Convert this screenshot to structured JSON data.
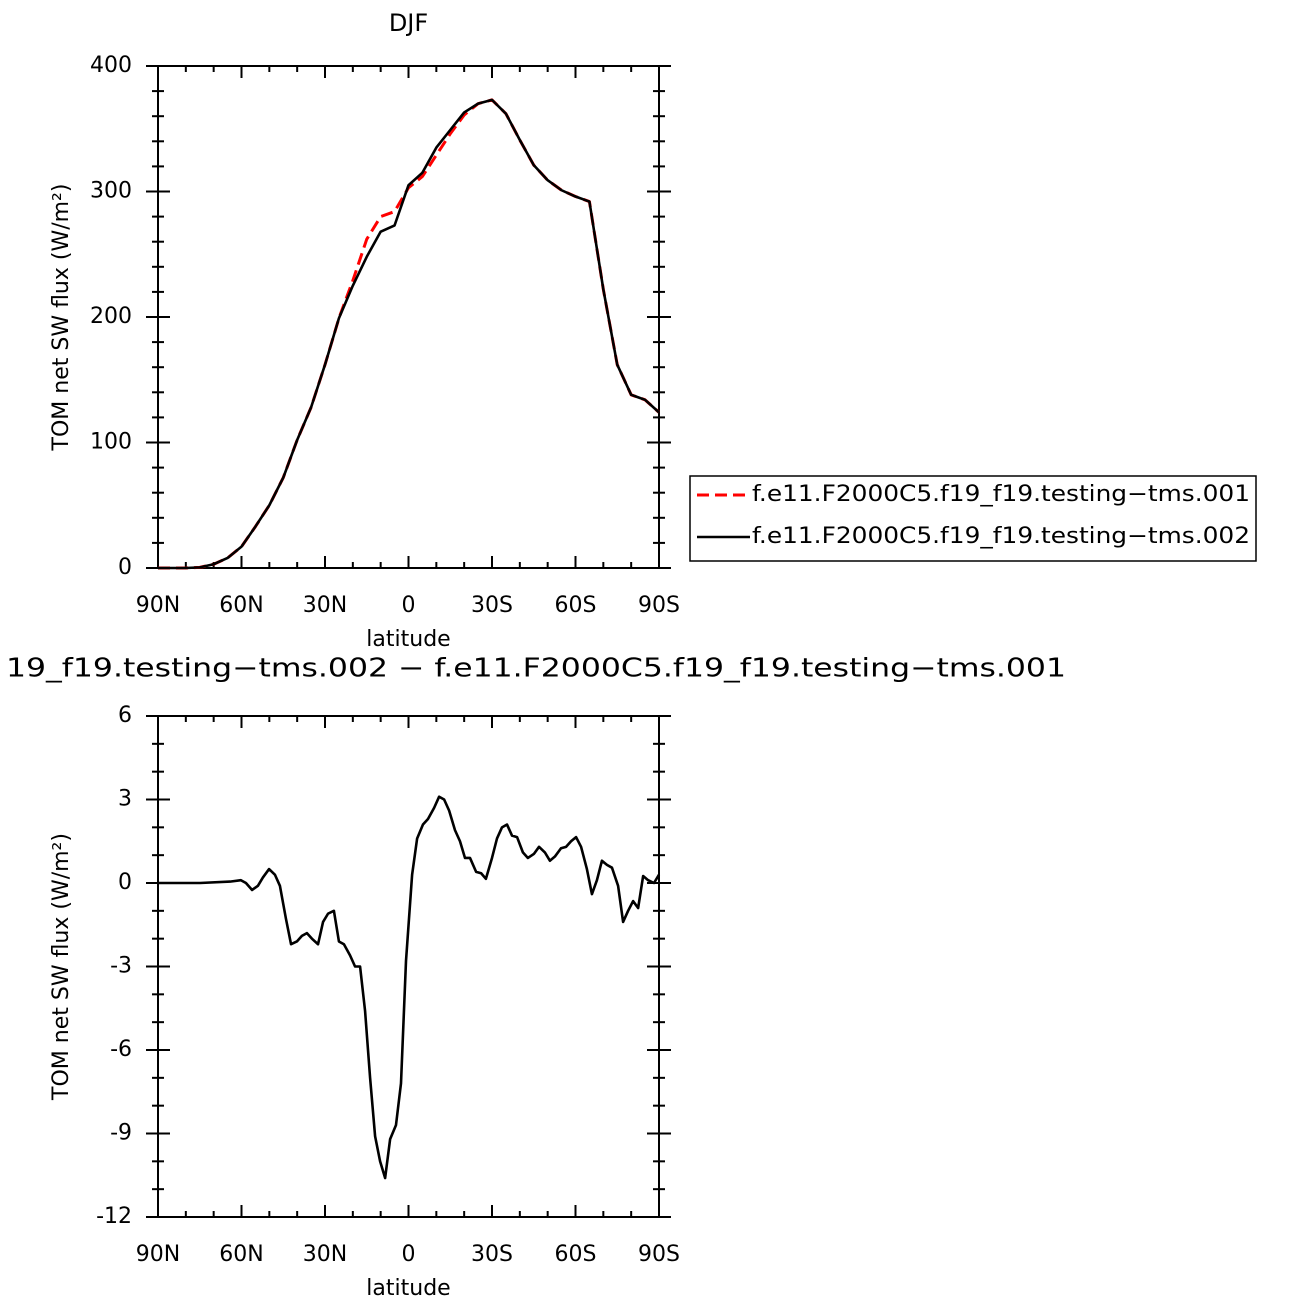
{
  "chart_data": [
    {
      "type": "line",
      "title": "DJF",
      "xlabel": "latitude",
      "ylabel": "TOM net SW flux (W/m²)",
      "x": [
        90,
        85,
        80,
        75,
        70,
        65,
        60,
        55,
        50,
        45,
        40,
        35,
        30,
        25,
        20,
        15,
        10,
        5,
        0,
        -5,
        -10,
        -15,
        -20,
        -25,
        -30,
        -35,
        -40,
        -45,
        -50,
        -55,
        -60,
        -65,
        -70,
        -75,
        -80,
        -85,
        -90
      ],
      "series": [
        {
          "name": "f.e11.F2000C5.f19_f19.testing−tms.001",
          "color": "#ff0000",
          "dash": "dashed",
          "values": [
            0,
            0,
            0,
            0.5,
            3,
            8,
            17,
            33,
            50,
            72,
            102,
            128,
            162,
            199,
            229,
            262,
            280,
            284,
            303,
            312,
            329,
            346,
            361,
            370,
            373,
            362,
            341,
            321,
            309,
            301,
            296,
            292,
            222,
            162,
            138,
            134,
            124
          ]
        },
        {
          "name": "f.e11.F2000C5.f19_f19.testing−tms.002",
          "color": "#000000",
          "dash": "solid",
          "values": [
            0,
            0,
            0,
            0.5,
            3,
            8,
            17,
            33,
            50,
            72,
            102,
            128,
            162,
            199,
            225,
            248,
            268,
            273,
            305,
            315,
            335,
            349,
            363,
            370,
            373,
            362,
            341,
            321,
            309,
            301,
            296,
            292,
            222,
            162,
            138,
            134,
            124
          ]
        }
      ],
      "xlim": [
        90,
        -90
      ],
      "xticks": [
        {
          "value": 90,
          "label": "90N"
        },
        {
          "value": 60,
          "label": "60N"
        },
        {
          "value": 30,
          "label": "30N"
        },
        0,
        {
          "value": -30,
          "label": "30S"
        },
        {
          "value": -60,
          "label": "60S"
        },
        {
          "value": -90,
          "label": "90S"
        }
      ],
      "ylim": [
        0,
        400
      ],
      "yticks": [
        0,
        100,
        200,
        300,
        400
      ],
      "legend": "right"
    },
    {
      "type": "line",
      "title": "19_f19.testing−tms.002 − f.e11.F2000C5.f19_f19.testing−tms.001",
      "xlabel": "latitude",
      "ylabel": "TOM net SW flux (W/m²)",
      "x": [
        90,
        74.9,
        64.1,
        60.2,
        58.4,
        56.2,
        54.1,
        52.3,
        50.1,
        48.0,
        46.2,
        44.0,
        42.2,
        40.1,
        38.3,
        36.5,
        34.7,
        32.5,
        30.7,
        28.9,
        26.8,
        25.0,
        23.2,
        21.0,
        19.2,
        17.4,
        15.6,
        13.8,
        12.0,
        10.2,
        8.4,
        6.6,
        4.5,
        2.7,
        0.9,
        -1.3,
        -3.1,
        -5.2,
        -7.0,
        -9.2,
        -11.0,
        -12.8,
        -14.6,
        -16.7,
        -18.5,
        -20.3,
        -22.1,
        -24.3,
        -26.1,
        -27.8,
        -30.0,
        -31.8,
        -33.6,
        -35.4,
        -37.2,
        -39.0,
        -41.1,
        -42.9,
        -45.1,
        -46.9,
        -49.0,
        -50.8,
        -52.6,
        -54.8,
        -56.6,
        -58.4,
        -60.2,
        -62.0,
        -64.1,
        -65.9,
        -67.7,
        -69.5,
        -71.3,
        -73.1,
        -75.3,
        -77.1,
        -78.9,
        -80.7,
        -82.5,
        -84.3,
        -86.1,
        -88.2,
        -90.0
      ],
      "series": [
        {
          "color": "#000000",
          "dash": "solid",
          "values": [
            0,
            0,
            0.05,
            0.1,
            0,
            -0.25,
            -0.1,
            0.2,
            0.5,
            0.3,
            -0.1,
            -1.3,
            -2.2,
            -2.1,
            -1.9,
            -1.8,
            -2.0,
            -2.2,
            -1.4,
            -1.1,
            -1.0,
            -2.1,
            -2.2,
            -2.6,
            -3.0,
            -3.0,
            -4.6,
            -7.0,
            -9.1,
            -10.0,
            -10.6,
            -9.2,
            -8.7,
            -7.2,
            -2.8,
            0.3,
            1.6,
            2.1,
            2.3,
            2.7,
            3.1,
            3.0,
            2.6,
            1.9,
            1.5,
            0.9,
            0.9,
            0.4,
            0.35,
            0.15,
            0.9,
            1.6,
            2.0,
            2.1,
            1.7,
            1.65,
            1.1,
            0.9,
            1.05,
            1.3,
            1.1,
            0.8,
            0.95,
            1.25,
            1.3,
            1.5,
            1.65,
            1.3,
            0.5,
            -0.4,
            0.1,
            0.8,
            0.65,
            0.55,
            -0.1,
            -1.4,
            -1.0,
            -0.65,
            -0.9,
            0.25,
            0.1,
            0.0,
            0.3
          ]
        }
      ],
      "xlim": [
        90,
        -90
      ],
      "xticks": [
        {
          "value": 90,
          "label": "90N"
        },
        {
          "value": 60,
          "label": "60N"
        },
        {
          "value": 30,
          "label": "30N"
        },
        0,
        {
          "value": -30,
          "label": "30S"
        },
        {
          "value": -60,
          "label": "60S"
        },
        {
          "value": -90,
          "label": "90S"
        }
      ],
      "ylim": [
        -12,
        6
      ],
      "yticks": [
        -12,
        -9,
        -6,
        -3,
        0,
        3,
        6
      ]
    }
  ]
}
